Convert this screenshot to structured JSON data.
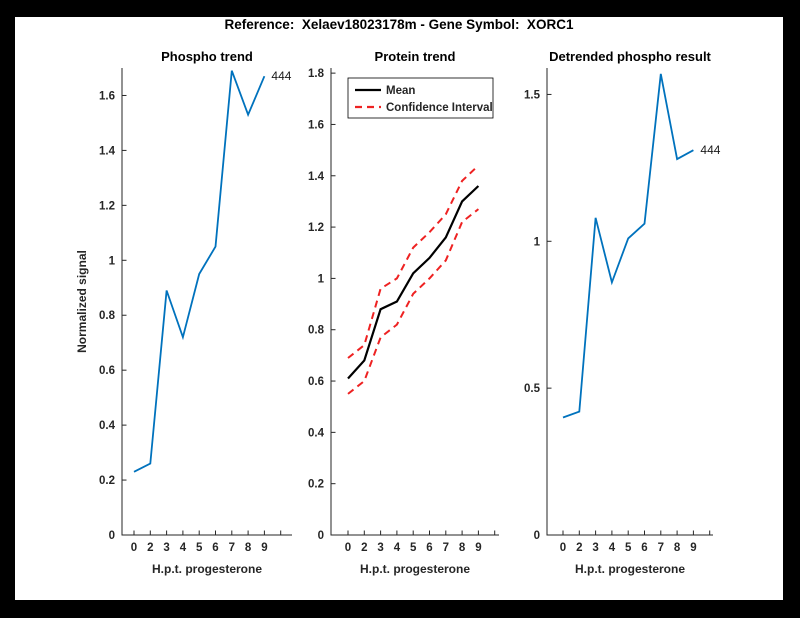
{
  "figure": {
    "title": "Reference:  Xelaev18023178m - Gene Symbol:  XORC1",
    "colors": {
      "background": "#ffffff",
      "frame": "#000000",
      "axis": "#262626",
      "text": "#1a1a1a",
      "line_blue": "#0072BD",
      "line_red": "#ee2222",
      "line_black": "#000000"
    }
  },
  "chart_data": [
    {
      "type": "line",
      "title": "Phospho trend",
      "xlabel": "H.p.t. progesterone",
      "ylabel": "Normalized signal",
      "categories": [
        "0",
        "2",
        "3",
        "4",
        "5",
        "6",
        "7",
        "8",
        "9"
      ],
      "extra_unlabeled_x_tick": true,
      "ylim": [
        0,
        1.7
      ],
      "ytick_values": [
        0,
        0.2,
        0.4,
        0.6,
        0.8,
        1,
        1.2,
        1.4,
        1.6
      ],
      "ytick_labels": [
        "0",
        "0.2",
        "0.4",
        "0.6",
        "0.8",
        "1",
        "1.2",
        "1.4",
        "1.6"
      ],
      "grid": false,
      "legend_position": "none",
      "series": [
        {
          "name": "phospho-signal",
          "color": "#0072BD",
          "dash": false,
          "width": 1.8,
          "values": [
            0.23,
            0.26,
            0.89,
            0.72,
            0.95,
            1.05,
            1.69,
            1.53,
            1.67
          ]
        }
      ],
      "end_label": "444"
    },
    {
      "type": "line",
      "title": "Protein trend",
      "xlabel": "H.p.t. progesterone",
      "ylabel": "",
      "categories": [
        "0",
        "2",
        "3",
        "4",
        "5",
        "6",
        "7",
        "8",
        "9"
      ],
      "extra_unlabeled_x_tick": true,
      "ylim": [
        0,
        1.82
      ],
      "ytick_values": [
        0,
        0.2,
        0.4,
        0.6,
        0.8,
        1,
        1.2,
        1.4,
        1.6,
        1.8
      ],
      "ytick_labels": [
        "0",
        "0.2",
        "0.4",
        "0.6",
        "0.8",
        "1",
        "1.2",
        "1.4",
        "1.6",
        "1.8"
      ],
      "grid": false,
      "legend_position": "top-left",
      "legend": {
        "items": [
          {
            "label": "Mean",
            "color": "#000000",
            "dash": false
          },
          {
            "label": "Confidence Interval",
            "color": "#ee2222",
            "dash": true
          }
        ]
      },
      "series": [
        {
          "name": "mean",
          "color": "#000000",
          "dash": false,
          "width": 2.2,
          "values": [
            0.61,
            0.68,
            0.88,
            0.91,
            1.02,
            1.08,
            1.16,
            1.3,
            1.36
          ]
        },
        {
          "name": "ci-upper",
          "color": "#ee2222",
          "dash": true,
          "width": 2,
          "values": [
            0.69,
            0.74,
            0.96,
            1.0,
            1.12,
            1.18,
            1.25,
            1.38,
            1.44
          ]
        },
        {
          "name": "ci-lower",
          "color": "#ee2222",
          "dash": true,
          "width": 2,
          "values": [
            0.55,
            0.6,
            0.77,
            0.82,
            0.94,
            1.0,
            1.07,
            1.22,
            1.27
          ]
        }
      ]
    },
    {
      "type": "line",
      "title": "Detrended phospho result",
      "xlabel": "H.p.t. progesterone",
      "ylabel": "",
      "categories": [
        "0",
        "2",
        "3",
        "4",
        "5",
        "6",
        "7",
        "8",
        "9"
      ],
      "extra_unlabeled_x_tick": true,
      "ylim": [
        0,
        1.59
      ],
      "ytick_values": [
        0,
        0.5,
        1,
        1.5
      ],
      "ytick_labels": [
        "0",
        "0.5",
        "1",
        "1.5"
      ],
      "grid": false,
      "legend_position": "none",
      "series": [
        {
          "name": "detrended-phospho",
          "color": "#0072BD",
          "dash": false,
          "width": 1.8,
          "values": [
            0.4,
            0.42,
            1.08,
            0.86,
            1.01,
            1.06,
            1.57,
            1.28,
            1.31
          ]
        }
      ],
      "end_label": "444"
    }
  ]
}
